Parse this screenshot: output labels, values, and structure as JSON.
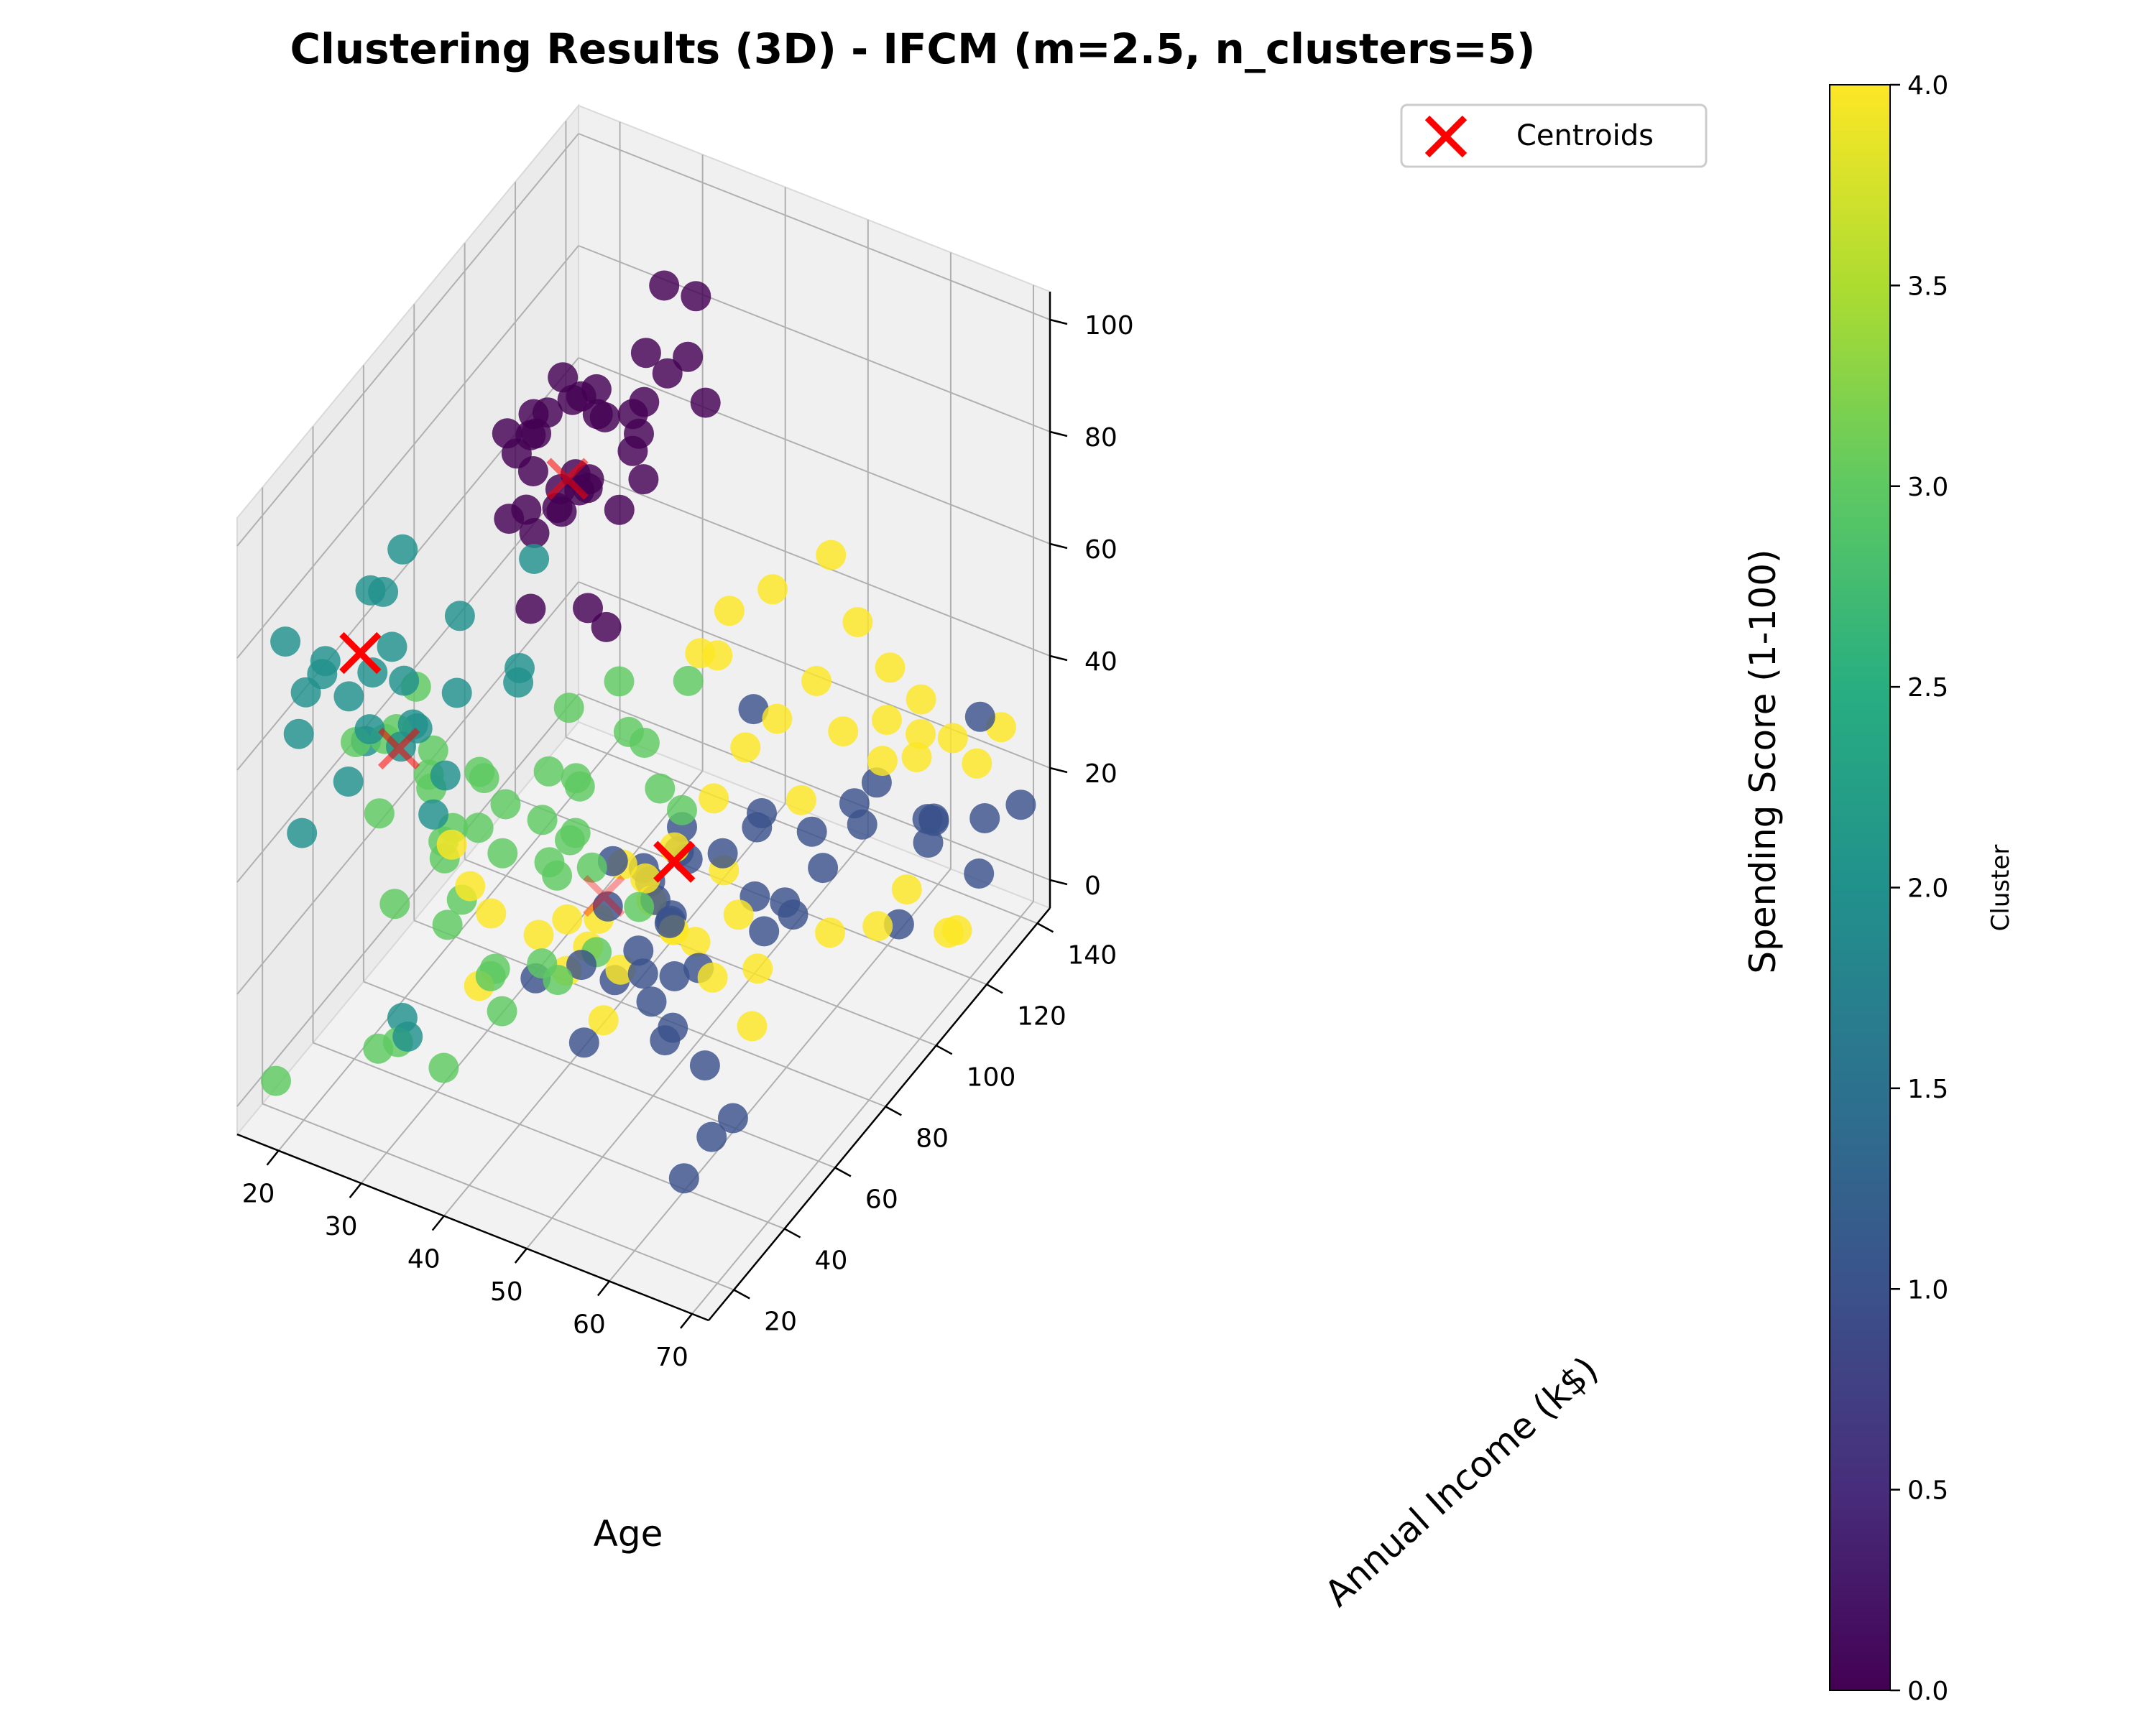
{
  "chart_data": {
    "type": "scatter3d",
    "title": "Clustering Results (3D) - IFCM (m=2.5, n_clusters=5)",
    "xlabel": "Age",
    "ylabel": "Annual Income (k$)",
    "zlabel": "Spending Score (1-100)",
    "xticks": [
      "20",
      "30",
      "40",
      "50",
      "60",
      "70"
    ],
    "yticks": [
      "20",
      "40",
      "60",
      "80",
      "100",
      "120",
      "140"
    ],
    "zticks": [
      "0",
      "20",
      "40",
      "60",
      "80",
      "100"
    ],
    "xlim": [
      15,
      72
    ],
    "ylim": [
      10,
      145
    ],
    "zlim": [
      -5,
      105
    ],
    "colorbar": {
      "label": "Cluster",
      "ticks": [
        "0.0",
        "0.5",
        "1.0",
        "1.5",
        "2.0",
        "2.5",
        "3.0",
        "3.5",
        "4.0"
      ],
      "range": [
        0,
        4
      ]
    },
    "legend": {
      "label": "Centroids",
      "location": "upper-right"
    },
    "colormap": [
      "#440154",
      "#3b528b",
      "#21918c",
      "#5ec962",
      "#fde725"
    ],
    "centroid_color": "#ff0000",
    "centroids": [
      {
        "cluster": 0,
        "age": 32,
        "income": 85,
        "score": 81
      },
      {
        "cluster": 1,
        "age": 44,
        "income": 88,
        "score": 18
      },
      {
        "cluster": 2,
        "age": 25,
        "income": 26,
        "score": 78
      },
      {
        "cluster": 3,
        "age": 26,
        "income": 38,
        "score": 55
      },
      {
        "cluster": 4,
        "age": 41,
        "income": 70,
        "score": 20
      }
    ],
    "clusters": [
      {
        "cluster": 0,
        "points": [
          [
            29,
            87,
            90
          ],
          [
            32,
            97,
            86
          ],
          [
            36,
            103,
            96
          ],
          [
            28,
            75,
            77
          ],
          [
            39,
            88,
            95
          ],
          [
            33,
            79,
            83
          ],
          [
            27,
            88,
            88
          ],
          [
            31,
            93,
            74
          ],
          [
            35,
            101,
            79
          ],
          [
            30,
            77,
            92
          ],
          [
            37,
            99,
            90
          ],
          [
            28,
            85,
            69
          ],
          [
            34,
            87,
            81
          ],
          [
            30,
            103,
            86
          ],
          [
            32,
            81,
            78
          ],
          [
            38,
            113,
            91
          ],
          [
            29,
            98,
            73
          ],
          [
            36,
            80,
            63
          ],
          [
            31,
            86,
            74
          ],
          [
            33,
            120,
            97
          ],
          [
            28,
            78,
            87
          ],
          [
            35,
            126,
            93
          ],
          [
            34,
            118,
            83
          ],
          [
            30,
            97,
            88
          ],
          [
            32,
            87,
            94
          ],
          [
            29,
            71,
            95
          ],
          [
            36,
            102,
            74
          ],
          [
            30,
            77,
            61
          ],
          [
            34,
            99,
            69
          ],
          [
            38,
            120,
            79
          ],
          [
            27,
            89,
            84
          ],
          [
            32,
            93,
            75
          ],
          [
            31,
            72,
            82
          ],
          [
            35,
            90,
            91
          ],
          [
            33,
            110,
            76
          ],
          [
            29,
            93,
            93
          ],
          [
            37,
            84,
            58
          ],
          [
            30,
            78,
            85
          ]
        ]
      },
      {
        "cluster": 1,
        "points": [
          [
            40,
            89,
            14
          ],
          [
            45,
            90,
            18
          ],
          [
            48,
            78,
            32
          ],
          [
            53,
            113,
            15
          ],
          [
            56,
            120,
            18
          ],
          [
            59,
            119,
            24
          ],
          [
            61,
            135,
            10
          ],
          [
            64,
            123,
            14
          ],
          [
            42,
            85,
            15
          ],
          [
            50,
            103,
            22
          ],
          [
            55,
            99,
            9
          ],
          [
            47,
            80,
            26
          ],
          [
            44,
            87,
            9
          ],
          [
            43,
            67,
            29
          ],
          [
            49,
            103,
            40
          ],
          [
            52,
            81,
            28
          ],
          [
            46,
            74,
            20
          ],
          [
            57,
            81,
            17
          ],
          [
            60,
            110,
            22
          ],
          [
            63,
            126,
            16
          ],
          [
            66,
            137,
            30
          ],
          [
            70,
            140,
            15
          ],
          [
            68,
            130,
            7
          ],
          [
            65,
            122,
            19
          ],
          [
            69,
            129,
            18
          ],
          [
            47,
            64,
            17
          ],
          [
            42,
            71,
            5
          ],
          [
            58,
            101,
            18
          ],
          [
            54,
            88,
            30
          ],
          [
            51,
            97,
            11
          ],
          [
            48,
            75,
            7
          ],
          [
            45,
            48,
            22
          ],
          [
            50,
            78,
            8
          ],
          [
            41,
            43,
            20
          ],
          [
            53,
            58,
            10
          ],
          [
            49,
            36,
            17
          ],
          [
            55,
            43,
            24
          ],
          [
            60,
            32,
            26
          ],
          [
            63,
            38,
            20
          ],
          [
            67,
            36,
            14
          ],
          [
            69,
            21,
            20
          ],
          [
            62,
            33,
            2
          ],
          [
            58,
            86,
            20
          ],
          [
            43,
            65,
            22
          ],
          [
            46,
            80,
            13
          ],
          [
            52,
            60,
            27
          ],
          [
            62,
            118,
            1
          ],
          [
            50,
            56,
            19
          ]
        ]
      },
      {
        "cluster": 2,
        "points": [
          [
            22,
            22,
            77
          ],
          [
            25,
            30,
            87
          ],
          [
            19,
            16,
            82
          ],
          [
            21,
            24,
            73
          ],
          [
            27,
            32,
            77
          ],
          [
            23,
            28,
            68
          ],
          [
            26,
            40,
            66
          ],
          [
            24,
            33,
            60
          ],
          [
            20,
            18,
            65
          ],
          [
            28,
            21,
            79
          ],
          [
            30,
            49,
            75
          ],
          [
            31,
            40,
            52
          ],
          [
            33,
            38,
            69
          ],
          [
            35,
            62,
            81
          ],
          [
            22,
            38,
            54
          ],
          [
            29,
            29,
            62
          ],
          [
            25,
            35,
            84
          ],
          [
            23,
            11,
            78
          ],
          [
            27,
            42,
            57
          ],
          [
            34,
            59,
            60
          ],
          [
            36,
            53,
            67
          ],
          [
            32,
            32,
            50
          ],
          [
            28,
            37,
            61
          ],
          [
            21,
            16,
            49
          ],
          [
            24,
            46,
            85
          ],
          [
            35,
            12,
            23
          ],
          [
            31,
            23,
            18
          ],
          [
            26,
            18,
            60
          ]
        ]
      },
      {
        "cluster": 3,
        "points": [
          [
            24,
            39,
            55
          ],
          [
            26,
            37,
            59
          ],
          [
            29,
            41,
            48
          ],
          [
            31,
            43,
            41
          ],
          [
            33,
            47,
            50
          ],
          [
            35,
            40,
            45
          ],
          [
            28,
            45,
            52
          ],
          [
            25,
            48,
            60
          ],
          [
            38,
            58,
            47
          ],
          [
            40,
            62,
            35
          ],
          [
            43,
            50,
            42
          ],
          [
            37,
            43,
            40
          ],
          [
            32,
            36,
            43
          ],
          [
            27,
            27,
            50
          ],
          [
            30,
            43,
            35
          ],
          [
            22,
            34,
            56
          ],
          [
            34,
            54,
            41
          ],
          [
            41,
            76,
            55
          ],
          [
            44,
            70,
            51
          ],
          [
            36,
            62,
            35
          ],
          [
            39,
            67,
            40
          ],
          [
            45,
            73,
            48
          ],
          [
            48,
            78,
            35
          ],
          [
            33,
            40,
            31
          ],
          [
            31,
            20,
            40
          ],
          [
            37,
            40,
            21
          ],
          [
            39,
            58,
            29
          ],
          [
            42,
            62,
            30
          ],
          [
            34,
            31,
            32
          ],
          [
            29,
            40,
            51
          ],
          [
            46,
            87,
            52
          ],
          [
            36,
            39,
            55
          ],
          [
            41,
            59,
            47
          ],
          [
            49,
            66,
            46
          ],
          [
            38,
            66,
            54
          ],
          [
            32,
            18,
            17
          ],
          [
            29,
            20,
            13
          ],
          [
            36,
            23,
            12
          ],
          [
            38,
            35,
            23
          ],
          [
            40,
            33,
            19
          ],
          [
            43,
            39,
            26
          ],
          [
            48,
            61,
            27
          ],
          [
            45,
            54,
            21
          ],
          [
            39,
            55,
            33
          ],
          [
            20,
            9,
            8
          ],
          [
            44,
            42,
            22
          ]
        ]
      },
      {
        "cluster": 4,
        "points": [
          [
            40,
            67,
            12
          ],
          [
            42,
            74,
            24
          ],
          [
            44,
            79,
            16
          ],
          [
            46,
            70,
            26
          ],
          [
            48,
            75,
            30
          ],
          [
            50,
            84,
            35
          ],
          [
            52,
            90,
            42
          ],
          [
            54,
            96,
            45
          ],
          [
            56,
            105,
            48
          ],
          [
            58,
            109,
            38
          ],
          [
            60,
            118,
            29
          ],
          [
            62,
            125,
            27
          ],
          [
            64,
            120,
            35
          ],
          [
            45,
            95,
            52
          ],
          [
            47,
            100,
            58
          ],
          [
            51,
            104,
            62
          ],
          [
            55,
            114,
            65
          ],
          [
            57,
            118,
            52
          ],
          [
            59,
            123,
            33
          ],
          [
            61,
            130,
            34
          ],
          [
            63,
            136,
            25
          ],
          [
            65,
            139,
            20
          ],
          [
            67,
            142,
            26
          ],
          [
            43,
            70,
            8
          ],
          [
            46,
            81,
            11
          ],
          [
            50,
            88,
            20
          ],
          [
            53,
            84,
            16
          ],
          [
            49,
            80,
            11
          ],
          [
            41,
            68,
            17
          ],
          [
            44,
            60,
            5
          ],
          [
            47,
            78,
            13
          ],
          [
            39,
            62,
            19
          ],
          [
            38,
            54,
            20
          ],
          [
            35,
            45,
            27
          ],
          [
            34,
            40,
            34
          ],
          [
            33,
            36,
            43
          ],
          [
            36,
            37,
            19
          ],
          [
            42,
            52,
            17
          ],
          [
            48,
            92,
            55
          ],
          [
            56,
            99,
            30
          ],
          [
            60,
            121,
            44
          ],
          [
            64,
            103,
            10
          ],
          [
            66,
            108,
            15
          ],
          [
            58,
            73,
            5
          ],
          [
            52,
            77,
            8
          ],
          [
            55,
            85,
            7
          ],
          [
            61,
            94,
            12
          ],
          [
            69,
            118,
            4
          ],
          [
            68,
            118,
            3
          ]
        ]
      }
    ]
  }
}
